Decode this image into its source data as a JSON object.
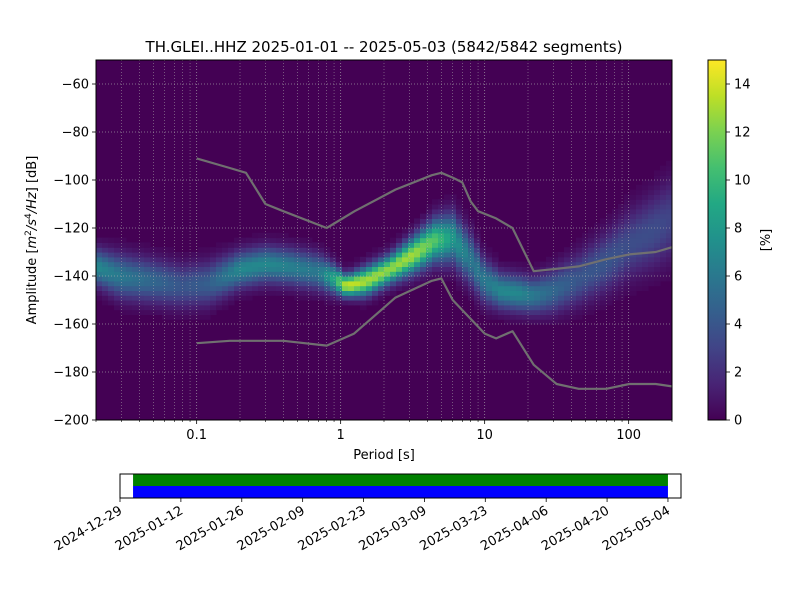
{
  "chart_data": [
    {
      "type": "heatmap",
      "title": "TH.GLEI..HHZ   2025-01-01 -- 2025-05-03  (5842/5842 segments)",
      "xlabel": "Period [s]",
      "ylabel_prefix": "Amplitude [",
      "ylabel_unit": {
        "base1": "m",
        "sup1": "2",
        "mid": "/s",
        "sup2": "4",
        "tail": "/Hz",
        "suffix": "] [dB]"
      },
      "x_scale": "log",
      "xlim": [
        0.02,
        200
      ],
      "ylim": [
        -200,
        -50
      ],
      "x_ticks": [
        {
          "value": 0.1,
          "label": "0.1"
        },
        {
          "value": 1,
          "label": "1"
        },
        {
          "value": 10,
          "label": "10"
        },
        {
          "value": 100,
          "label": "100"
        }
      ],
      "y_ticks": [
        {
          "value": -60,
          "label": "−60"
        },
        {
          "value": -80,
          "label": "−80"
        },
        {
          "value": -100,
          "label": "−100"
        },
        {
          "value": -120,
          "label": "−120"
        },
        {
          "value": -140,
          "label": "−140"
        },
        {
          "value": -160,
          "label": "−160"
        },
        {
          "value": -180,
          "label": "−180"
        },
        {
          "value": -200,
          "label": "−200"
        }
      ],
      "grid": true,
      "colorbar": {
        "label": "[%]",
        "range": [
          0,
          15
        ],
        "ticks": [
          {
            "value": 0,
            "label": "0"
          },
          {
            "value": 2,
            "label": "2"
          },
          {
            "value": 4,
            "label": "4"
          },
          {
            "value": 6,
            "label": "6"
          },
          {
            "value": 8,
            "label": "8"
          },
          {
            "value": 10,
            "label": "10"
          },
          {
            "value": 12,
            "label": "12"
          },
          {
            "value": 14,
            "label": "14"
          }
        ],
        "colormap": [
          "#440154",
          "#482475",
          "#414487",
          "#355f8d",
          "#2a788e",
          "#21918c",
          "#22a884",
          "#44bf70",
          "#7ad151",
          "#bddf26",
          "#fde725"
        ]
      },
      "density_ridge": {
        "period": [
          0.02,
          0.03,
          0.05,
          0.08,
          0.12,
          0.2,
          0.3,
          0.45,
          0.7,
          0.9,
          1.1,
          1.5,
          2.2,
          3.2,
          4.5,
          6,
          8,
          10,
          13,
          17,
          22,
          30,
          45,
          70,
          100,
          150,
          200
        ],
        "amplitude_db": [
          -136,
          -140,
          -142,
          -144,
          -143,
          -137,
          -135,
          -136,
          -138,
          -141,
          -144,
          -142,
          -137,
          -131,
          -125,
          -124,
          -133,
          -142,
          -146,
          -147,
          -148,
          -146,
          -141,
          -134,
          -127,
          -121,
          -116
        ],
        "peak_percent": [
          7,
          6,
          5,
          4,
          4.5,
          7,
          7,
          6.5,
          6,
          9,
          14,
          13,
          12.5,
          13,
          11,
          8,
          6,
          6,
          7,
          7,
          6,
          5,
          4,
          4,
          3.5,
          3.5,
          3
        ],
        "spread_db": [
          5,
          6,
          6,
          6,
          6,
          5,
          5,
          5,
          5,
          4,
          3,
          4,
          4,
          5,
          6,
          7,
          7,
          6,
          5,
          5,
          5,
          6,
          7,
          8,
          9,
          10,
          11
        ]
      },
      "noise_models": [
        {
          "x": [
            0.1,
            0.17,
            0.22,
            0.3,
            0.4,
            0.8,
            1.25,
            2.4,
            4.3,
            5,
            6,
            7,
            8,
            9,
            12,
            15.6,
            21.9,
            31.6,
            45,
            70,
            101,
            154,
            200
          ],
          "y": [
            -91,
            -95,
            -97,
            -110,
            -113,
            -120,
            -113,
            -104,
            -98,
            -97,
            -99,
            -101,
            -109,
            -113,
            -116,
            -120,
            -138,
            -137,
            -136,
            -133,
            -131,
            -130,
            -128
          ]
        },
        {
          "x": [
            0.1,
            0.17,
            0.4,
            0.8,
            1.24,
            2.4,
            4.3,
            5,
            6,
            10,
            12,
            15.6,
            21.9,
            31.6,
            45,
            70,
            101,
            154,
            200
          ],
          "y": [
            -168,
            -167,
            -167,
            -169,
            -164,
            -149,
            -142,
            -141,
            -150,
            -164,
            -166,
            -163,
            -177,
            -185,
            -187,
            -187,
            -185,
            -185,
            -186
          ]
        }
      ]
    },
    {
      "type": "timeline",
      "x_ticks": [
        "2024-12-29",
        "2025-01-12",
        "2025-01-26",
        "2025-02-09",
        "2025-02-23",
        "2025-03-09",
        "2025-03-23",
        "2025-04-06",
        "2025-04-20",
        "2025-05-04"
      ],
      "xlim": [
        "2024-12-29",
        "2025-05-07"
      ],
      "coverage": [
        {
          "start": "2025-01-01",
          "end": "2025-05-04",
          "color": "#008000"
        },
        {
          "start": "2025-01-01",
          "end": "2025-05-04",
          "color": "#0000ff"
        }
      ]
    }
  ]
}
